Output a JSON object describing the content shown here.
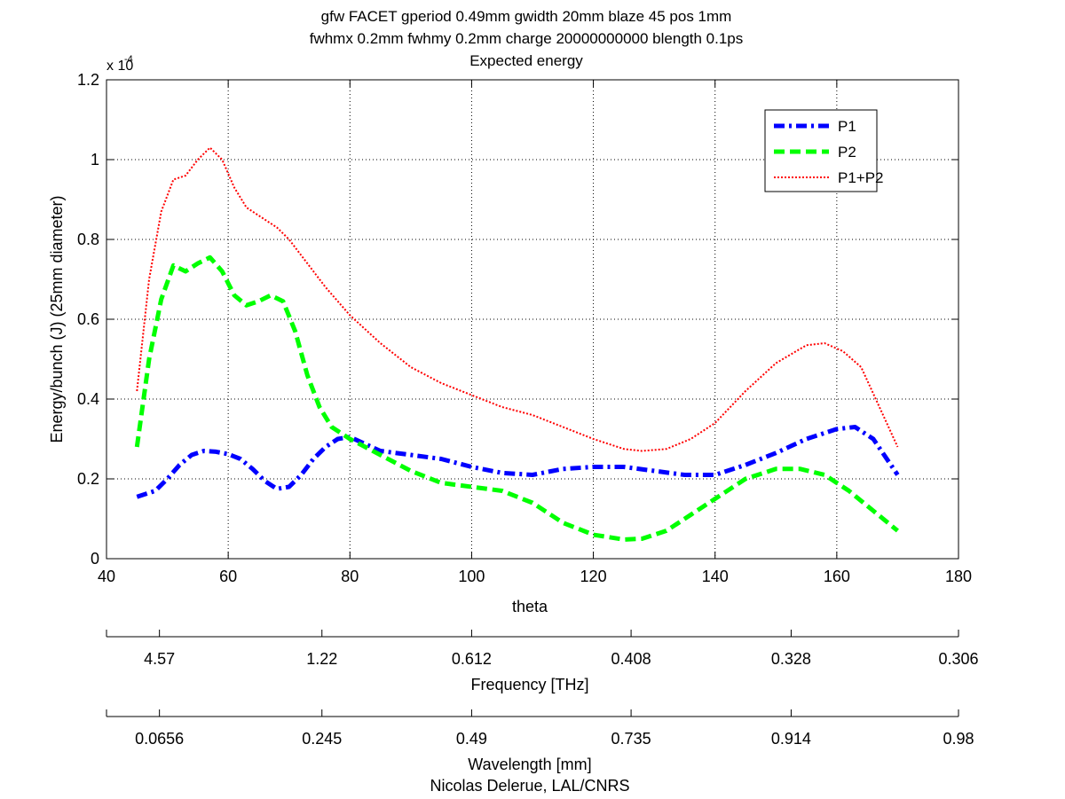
{
  "chart_data": {
    "type": "line",
    "title_lines": [
      "gfw FACET gperiod 0.49mm gwidth 20mm blaze 45 pos 1mm",
      "fwhmx 0.2mm fwhmy 0.2mm charge 20000000000 blength 0.1ps",
      "Expected energy"
    ],
    "xlabel": "theta",
    "ylabel": "Energy/bunch (J) (25mm diameter)",
    "y_exponent_base": "x 10",
    "y_exponent_power": "-4",
    "xlim": [
      40,
      180
    ],
    "ylim": [
      0,
      1.2
    ],
    "x_ticks": [
      40,
      60,
      80,
      100,
      120,
      140,
      160,
      180
    ],
    "y_ticks": [
      0,
      0.2,
      0.4,
      0.6,
      0.8,
      1,
      1.2
    ],
    "y_tick_labels": [
      "0",
      "0.2",
      "0.4",
      "0.6",
      "0.8",
      "1",
      "1.2"
    ],
    "grid": true,
    "legend_placement": "top-right",
    "series": [
      {
        "name": "P1",
        "color": "#0000ff",
        "style": "dash-dot",
        "x": [
          45,
          48,
          50,
          52,
          54,
          56,
          58,
          60,
          62,
          64,
          66,
          68,
          70,
          72,
          74,
          76,
          78,
          80,
          85,
          90,
          95,
          100,
          105,
          110,
          115,
          120,
          125,
          130,
          135,
          140,
          145,
          150,
          155,
          160,
          163,
          166,
          170
        ],
        "y": [
          0.155,
          0.17,
          0.2,
          0.235,
          0.26,
          0.27,
          0.268,
          0.262,
          0.25,
          0.225,
          0.195,
          0.175,
          0.18,
          0.21,
          0.25,
          0.28,
          0.3,
          0.305,
          0.27,
          0.26,
          0.25,
          0.23,
          0.215,
          0.21,
          0.225,
          0.23,
          0.23,
          0.22,
          0.21,
          0.21,
          0.235,
          0.265,
          0.3,
          0.325,
          0.33,
          0.3,
          0.21
        ]
      },
      {
        "name": "P2",
        "color": "#00ff00",
        "style": "dashed",
        "x": [
          45,
          47,
          49,
          51,
          53,
          55,
          57,
          59,
          61,
          63,
          65,
          67,
          69,
          71,
          73,
          75,
          77,
          80,
          85,
          90,
          95,
          100,
          105,
          110,
          115,
          120,
          125,
          128,
          132,
          136,
          140,
          145,
          150,
          154,
          158,
          162,
          166,
          170
        ],
        "y": [
          0.28,
          0.5,
          0.65,
          0.735,
          0.72,
          0.74,
          0.755,
          0.72,
          0.66,
          0.635,
          0.645,
          0.66,
          0.645,
          0.57,
          0.46,
          0.38,
          0.33,
          0.3,
          0.26,
          0.22,
          0.19,
          0.18,
          0.17,
          0.14,
          0.09,
          0.06,
          0.048,
          0.05,
          0.07,
          0.11,
          0.15,
          0.2,
          0.225,
          0.225,
          0.21,
          0.17,
          0.12,
          0.07
        ]
      },
      {
        "name": "P1+P2",
        "color": "#ff0000",
        "style": "dotted",
        "x": [
          45,
          47,
          49,
          51,
          53,
          55,
          57,
          59,
          61,
          63,
          65,
          68,
          70,
          73,
          76,
          80,
          85,
          90,
          95,
          100,
          105,
          110,
          115,
          120,
          125,
          128,
          132,
          136,
          140,
          145,
          150,
          155,
          158,
          161,
          164,
          167,
          170
        ],
        "y": [
          0.42,
          0.7,
          0.87,
          0.95,
          0.96,
          1.0,
          1.03,
          1.0,
          0.93,
          0.88,
          0.86,
          0.83,
          0.8,
          0.74,
          0.68,
          0.61,
          0.54,
          0.48,
          0.44,
          0.41,
          0.38,
          0.36,
          0.33,
          0.3,
          0.275,
          0.27,
          0.275,
          0.3,
          0.34,
          0.42,
          0.49,
          0.535,
          0.54,
          0.52,
          0.48,
          0.38,
          0.28
        ]
      }
    ],
    "secondary_axes": [
      {
        "label": "Frequency [THz]",
        "tick_labels": [
          "4.57",
          "1.22",
          "0.612",
          "0.408",
          "0.328",
          "0.306"
        ],
        "tick_theta": [
          48.7,
          75.4,
          100,
          126.2,
          152.5,
          180
        ]
      },
      {
        "label": "Wavelength [mm]",
        "tick_labels": [
          "0.0656",
          "0.245",
          "0.49",
          "0.735",
          "0.914",
          "0.98"
        ],
        "tick_theta": [
          48.7,
          75.4,
          100,
          126.2,
          152.5,
          180
        ]
      }
    ],
    "footer": "Nicolas Delerue, LAL/CNRS"
  }
}
